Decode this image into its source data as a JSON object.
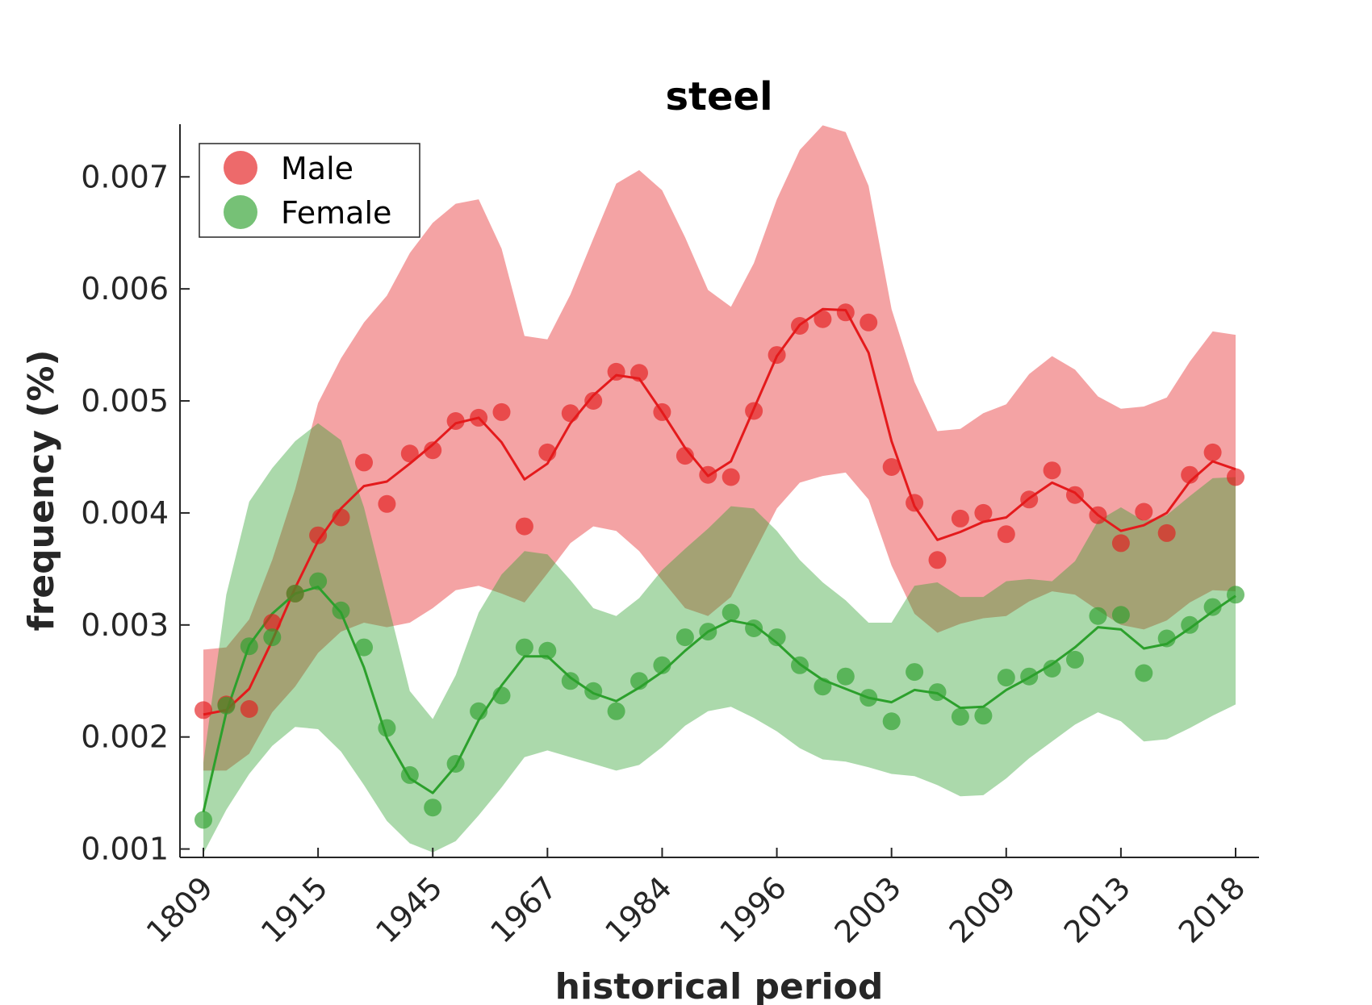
{
  "chart_data": {
    "type": "line",
    "title": "steel",
    "xlabel": "historical period",
    "ylabel": "frequency (%)",
    "ylim": [
      0.000925,
      0.00747
    ],
    "x_tick_labels": [
      "1809",
      "1915",
      "1945",
      "1967",
      "1984",
      "1996",
      "2003",
      "2009",
      "2013",
      "2018"
    ],
    "y_ticks": [
      0.001,
      0.002,
      0.003,
      0.004,
      0.005,
      0.006,
      0.007
    ],
    "y_tick_labels": [
      "0.001",
      "0.002",
      "0.003",
      "0.004",
      "0.005",
      "0.006",
      "0.007"
    ],
    "legend": {
      "position": "top-left",
      "entries": [
        "Male",
        "Female"
      ]
    },
    "grid": false,
    "series": [
      {
        "name": "Male",
        "color": "#e41a1c",
        "fill_color": "#f4a3a4",
        "points": [
          0.00224,
          0.00229,
          0.00225,
          0.00302,
          0.00328,
          0.0038,
          0.00396,
          0.00445,
          0.00408,
          0.00453,
          0.00456,
          0.00482,
          0.00485,
          0.0049,
          0.00388,
          0.00454,
          0.00489,
          0.005,
          0.00526,
          0.00525,
          0.0049,
          0.00451,
          0.00434,
          0.00432,
          0.00491,
          0.00541,
          0.00567,
          0.00573,
          0.00579,
          0.0057,
          0.00441,
          0.00409,
          0.00358,
          0.00395,
          0.004,
          0.00381,
          0.00412,
          0.00438,
          0.00416,
          0.00398,
          0.00373,
          0.00401,
          0.00382,
          0.00434,
          0.00454,
          0.00432
        ],
        "trend": [
          0.0022,
          0.00224,
          0.00243,
          0.00286,
          0.00333,
          0.00375,
          0.00404,
          0.00424,
          0.00428,
          0.00444,
          0.00461,
          0.0048,
          0.00485,
          0.00463,
          0.0043,
          0.00444,
          0.0048,
          0.00505,
          0.00523,
          0.0052,
          0.0049,
          0.00458,
          0.00433,
          0.00446,
          0.00493,
          0.0054,
          0.00568,
          0.00582,
          0.00581,
          0.00543,
          0.00464,
          0.00406,
          0.00376,
          0.00383,
          0.00392,
          0.00396,
          0.00413,
          0.00427,
          0.00418,
          0.00398,
          0.00384,
          0.00389,
          0.004,
          0.00428,
          0.00446,
          0.00439
        ],
        "upper": [
          0.00278,
          0.0028,
          0.00305,
          0.00358,
          0.00421,
          0.00498,
          0.00538,
          0.0057,
          0.00594,
          0.00632,
          0.00659,
          0.00676,
          0.0068,
          0.00636,
          0.00558,
          0.00555,
          0.00595,
          0.00645,
          0.00694,
          0.00706,
          0.00688,
          0.00646,
          0.00599,
          0.00584,
          0.00623,
          0.0068,
          0.00724,
          0.00746,
          0.0074,
          0.00692,
          0.00582,
          0.00517,
          0.00473,
          0.00475,
          0.00489,
          0.00497,
          0.00524,
          0.0054,
          0.00528,
          0.00504,
          0.00493,
          0.00495,
          0.00503,
          0.00535,
          0.00562,
          0.00559
        ],
        "lower": [
          0.0017,
          0.0017,
          0.00185,
          0.00222,
          0.00245,
          0.00275,
          0.00294,
          0.00302,
          0.00298,
          0.00302,
          0.00315,
          0.00331,
          0.00335,
          0.00328,
          0.0032,
          0.00346,
          0.00373,
          0.00388,
          0.00384,
          0.00366,
          0.0034,
          0.00315,
          0.00308,
          0.00325,
          0.00364,
          0.00404,
          0.00427,
          0.00433,
          0.00436,
          0.00412,
          0.00353,
          0.0031,
          0.00293,
          0.00301,
          0.00306,
          0.00308,
          0.00321,
          0.0033,
          0.00327,
          0.00313,
          0.003,
          0.00296,
          0.00304,
          0.0032,
          0.00331,
          0.0033
        ]
      },
      {
        "name": "Female",
        "color": "#2ca02c",
        "fill_color": "#afdaa6",
        "points": [
          0.00126,
          0.00228,
          0.00281,
          0.00289,
          0.00328,
          0.00339,
          0.00313,
          0.0028,
          0.00208,
          0.00166,
          0.00137,
          0.00176,
          0.00223,
          0.00237,
          0.0028,
          0.00277,
          0.0025,
          0.00241,
          0.00223,
          0.0025,
          0.00264,
          0.00289,
          0.00294,
          0.00311,
          0.00297,
          0.00289,
          0.00264,
          0.00245,
          0.00254,
          0.00235,
          0.00214,
          0.00258,
          0.0024,
          0.00218,
          0.00219,
          0.00253,
          0.00254,
          0.00261,
          0.00269,
          0.00308,
          0.00309,
          0.00257,
          0.00288,
          0.003,
          0.00316,
          0.00327
        ],
        "trend": [
          0.00133,
          0.00222,
          0.00282,
          0.0031,
          0.00328,
          0.00334,
          0.00311,
          0.00262,
          0.00199,
          0.00163,
          0.0015,
          0.00174,
          0.00215,
          0.00246,
          0.00272,
          0.00272,
          0.00253,
          0.00239,
          0.00232,
          0.00244,
          0.00258,
          0.00277,
          0.00294,
          0.00304,
          0.003,
          0.00284,
          0.00265,
          0.00251,
          0.00243,
          0.00235,
          0.00231,
          0.00242,
          0.00239,
          0.00226,
          0.00227,
          0.00242,
          0.00253,
          0.00265,
          0.0028,
          0.00298,
          0.00296,
          0.00279,
          0.00283,
          0.00297,
          0.00312,
          0.00326
        ],
        "upper": [
          0.00177,
          0.00327,
          0.0041,
          0.0044,
          0.00464,
          0.0048,
          0.00465,
          0.00405,
          0.00323,
          0.00241,
          0.00216,
          0.00255,
          0.00311,
          0.00345,
          0.00366,
          0.00363,
          0.0034,
          0.00315,
          0.00308,
          0.00324,
          0.00349,
          0.00368,
          0.00386,
          0.00406,
          0.00404,
          0.00384,
          0.00358,
          0.00338,
          0.00322,
          0.00302,
          0.00302,
          0.00335,
          0.00338,
          0.00325,
          0.00325,
          0.00339,
          0.00341,
          0.00339,
          0.00357,
          0.00393,
          0.00405,
          0.00393,
          0.00398,
          0.00415,
          0.00431,
          0.00432
        ],
        "lower": [
          0.00096,
          0.00135,
          0.00167,
          0.00192,
          0.00209,
          0.00207,
          0.00187,
          0.00157,
          0.00125,
          0.00105,
          0.00097,
          0.00107,
          0.0013,
          0.00155,
          0.00182,
          0.00188,
          0.00182,
          0.00176,
          0.0017,
          0.00175,
          0.00191,
          0.0021,
          0.00223,
          0.00227,
          0.00217,
          0.00205,
          0.0019,
          0.0018,
          0.00178,
          0.00173,
          0.00167,
          0.00165,
          0.00157,
          0.00147,
          0.00148,
          0.00163,
          0.00181,
          0.00196,
          0.00211,
          0.00222,
          0.00214,
          0.00196,
          0.00198,
          0.00208,
          0.00219,
          0.00229
        ]
      }
    ]
  }
}
